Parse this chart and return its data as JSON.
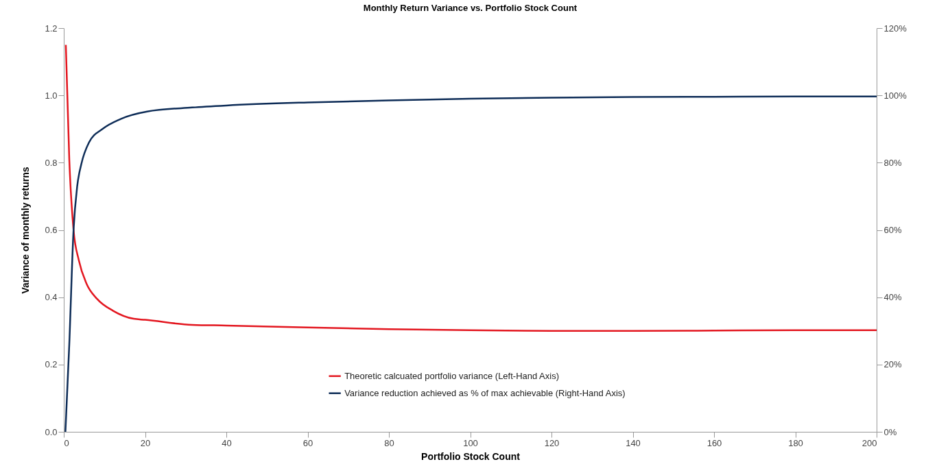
{
  "chart_data": {
    "type": "line",
    "title": "Monthly Return Variance vs. Portfolio Stock Count",
    "xlabel": "Portfolio Stock Count",
    "ylabel": "Variance of monthly returns",
    "xlim": [
      0,
      200
    ],
    "xticks": [
      0,
      20,
      40,
      60,
      80,
      100,
      120,
      140,
      160,
      180,
      200
    ],
    "ylim": [
      0,
      1.2
    ],
    "yticks": [
      {
        "value": 0,
        "label": "0.0"
      },
      0.2,
      0.4,
      0.6,
      0.8,
      {
        "value": 1,
        "label": "1.0"
      },
      1.2
    ],
    "y2lim": [
      0,
      120
    ],
    "y2ticks": [
      {
        "value": 0,
        "label": "0%"
      },
      {
        "value": 20,
        "label": "20%"
      },
      {
        "value": 40,
        "label": "40%"
      },
      {
        "value": 60,
        "label": "60%"
      },
      {
        "value": 80,
        "label": "80%"
      },
      {
        "value": 100,
        "label": "100%"
      },
      {
        "value": 120,
        "label": "120%"
      }
    ],
    "grid": false,
    "legend": "bottom",
    "marker": "none",
    "line_style": "solid",
    "series": [
      {
        "name": "Theoretic calcuated portfolio variance (Left-Hand Axis)",
        "color": "#e3161f",
        "x": [
          0.5,
          1.35,
          2.4,
          3.7,
          5.6,
          8.2,
          12.1,
          17.2,
          20,
          31.6,
          40,
          60,
          80,
          100,
          120,
          140,
          160,
          180,
          200
        ],
        "values": [
          1.15,
          0.81,
          0.6,
          0.51,
          0.44,
          0.395,
          0.36,
          0.336,
          0.333,
          0.318,
          0.316,
          0.31,
          0.305,
          0.302,
          0.3,
          0.3,
          0.301,
          0.302,
          0.302
        ]
      },
      {
        "name": "Variance reduction achieved as % of max achievable (Right-Hand Axis)",
        "color": "#0d2c57",
        "axis": "y2",
        "x": [
          0.4,
          1.35,
          2.4,
          3.3,
          4.3,
          6.2,
          9.5,
          14.0,
          20.5,
          31.6,
          40,
          60,
          80,
          100,
          120,
          140,
          160,
          180,
          200
        ],
        "values": [
          0,
          26,
          60,
          73,
          79.5,
          86,
          90,
          93,
          95.2,
          96.4,
          97,
          97.9,
          98.5,
          99,
          99.3,
          99.5,
          99.6,
          99.7,
          99.7
        ]
      }
    ]
  }
}
